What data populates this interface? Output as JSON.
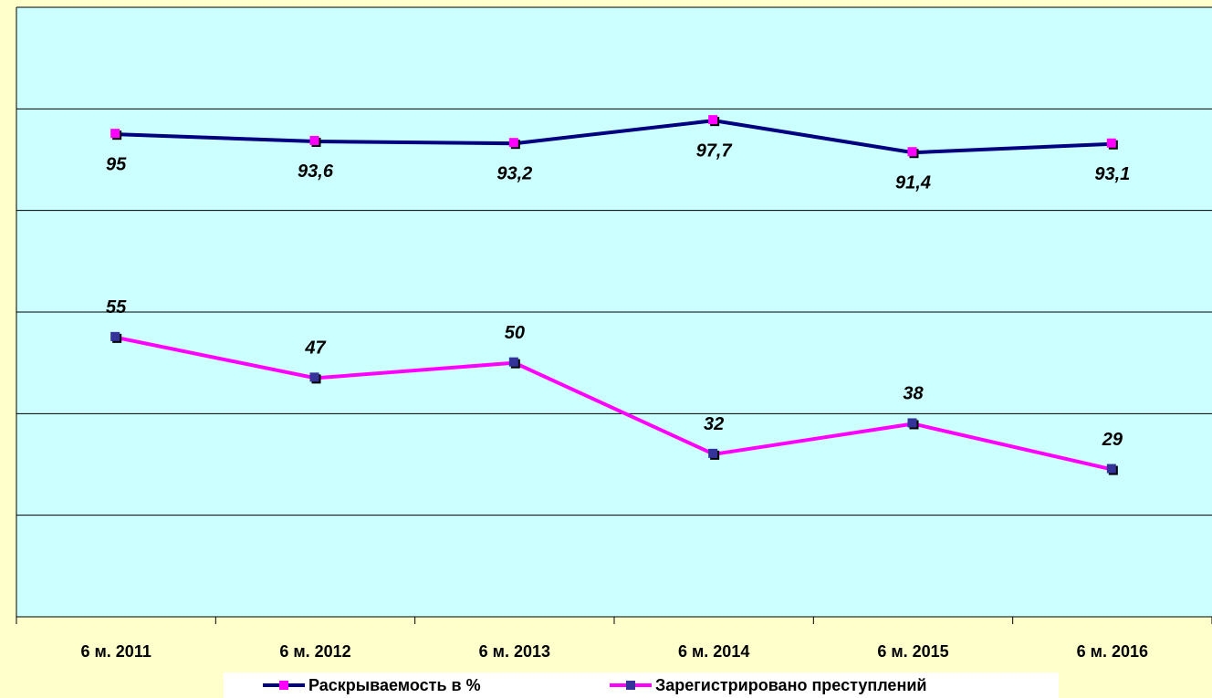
{
  "chart_data": {
    "type": "line",
    "categories": [
      "6 м. 2011",
      "6 м. 2012",
      "6 м. 2013",
      "6 м. 2014",
      "6 м. 2015",
      "6 м. 2016"
    ],
    "series": [
      {
        "name": "Раскрываемость в %",
        "color": "#000080",
        "marker_color": "#ff00ff",
        "label_position": "below",
        "values": [
          95,
          93.6,
          93.2,
          97.7,
          91.4,
          93.1
        ],
        "value_labels": [
          "95",
          "93,6",
          "93,2",
          "97,7",
          "91,4",
          "93,1"
        ]
      },
      {
        "name": "Зарегистрировано преступлений",
        "color": "#ff00ff",
        "marker_color": "#333399",
        "label_position": "above",
        "values": [
          55,
          47,
          50,
          32,
          38,
          29
        ]
      }
    ],
    "ylim": [
      0,
      120
    ],
    "yticks": [
      0,
      20,
      40,
      60,
      80,
      100,
      120
    ],
    "grid": true,
    "legend": "bottom"
  }
}
